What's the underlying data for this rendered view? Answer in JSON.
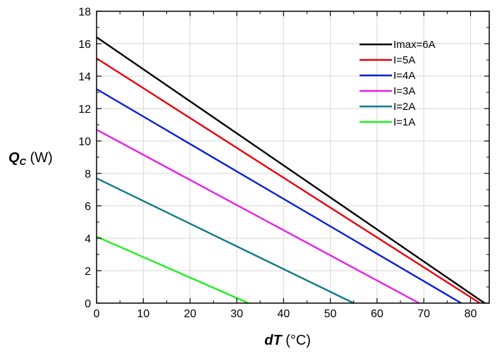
{
  "chart_data": {
    "type": "line",
    "xlabel": {
      "symbol": "dT",
      "unit": " (°C)"
    },
    "ylabel": {
      "symbol": "Q",
      "subscript": "C",
      "unit": " (W)"
    },
    "xlim": [
      0,
      84
    ],
    "ylim": [
      0,
      18
    ],
    "x_ticks": [
      0,
      10,
      20,
      30,
      40,
      50,
      60,
      70,
      80
    ],
    "y_ticks": [
      0,
      2,
      4,
      6,
      8,
      10,
      12,
      14,
      16,
      18
    ],
    "grid": true,
    "legend_position": "top-right",
    "series": [
      {
        "name": "Imax=6A",
        "color": "#000000",
        "x": [
          0,
          83
        ],
        "y": [
          16.4,
          0
        ]
      },
      {
        "name": "I=5A",
        "color": "#e8000b",
        "x": [
          0,
          82
        ],
        "y": [
          15.1,
          0
        ]
      },
      {
        "name": "I=4A",
        "color": "#0a1fd6",
        "x": [
          0,
          78
        ],
        "y": [
          13.2,
          0
        ]
      },
      {
        "name": "I=3A",
        "color": "#e81ee8",
        "x": [
          0,
          69
        ],
        "y": [
          10.7,
          0
        ]
      },
      {
        "name": "I=2A",
        "color": "#0f7a8a",
        "x": [
          0,
          55
        ],
        "y": [
          7.7,
          0
        ]
      },
      {
        "name": "I=1A",
        "color": "#1ef01e",
        "x": [
          0,
          32.5
        ],
        "y": [
          4.1,
          0
        ]
      }
    ]
  }
}
